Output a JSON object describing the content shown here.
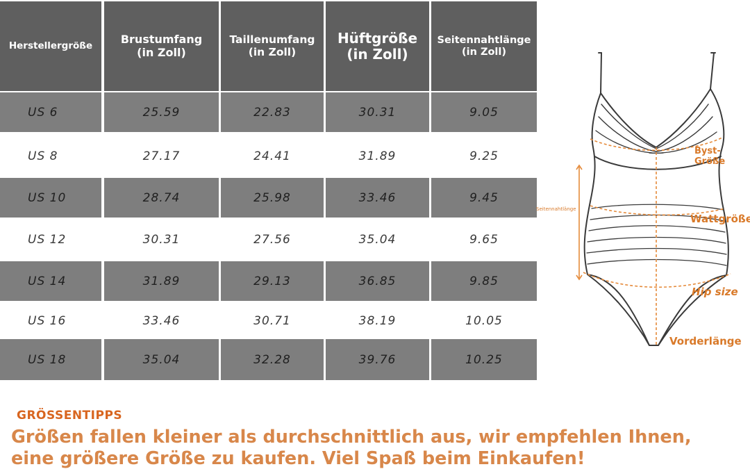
{
  "table": {
    "headers": [
      {
        "lines": [
          "Herstellergröße"
        ]
      },
      {
        "lines": [
          "Brustumfang",
          "(in Zoll)"
        ]
      },
      {
        "lines": [
          "Taillenumfang",
          "(in Zoll)"
        ]
      },
      {
        "lines": [
          "Hüftgröße",
          "(in Zoll)"
        ]
      },
      {
        "lines": [
          "Seitennahtlänge",
          "(in Zoll)"
        ]
      }
    ],
    "rows": [
      [
        "US 6",
        "25.59",
        "22.83",
        "30.31",
        "9.05"
      ],
      [
        "US 8",
        "27.17",
        "24.41",
        "31.89",
        "9.25"
      ],
      [
        "US 10",
        "28.74",
        "25.98",
        "33.46",
        "9.45"
      ],
      [
        "US 12",
        "30.31",
        "27.56",
        "35.04",
        "9.65"
      ],
      [
        "US 14",
        "31.89",
        "29.13",
        "36.85",
        "9.85"
      ],
      [
        "US 16",
        "33.46",
        "30.71",
        "38.19",
        "10.05"
      ],
      [
        "US 18",
        "35.04",
        "32.28",
        "39.76",
        "10.25"
      ]
    ]
  },
  "diagram": {
    "bust_label": "Byst-Größe",
    "side_label": "Seitennahtlänge",
    "waist_label": "Wattgröße",
    "hip_label": "Hip size",
    "front_label": "Vorderlänge"
  },
  "tips": {
    "title": "GRÖSSENTIPPS",
    "line1": "Größen fallen kleiner als durchschnittlich aus, wir empfehlen Ihnen,",
    "line2": "eine größere Größe zu kaufen. Viel Spaß beim Einkaufen!"
  },
  "colors": {
    "header_bg": "#5f5f5f",
    "dark_row": "#7e7e7e",
    "accent": "#d8651f",
    "tips_text": "#d8874a"
  }
}
